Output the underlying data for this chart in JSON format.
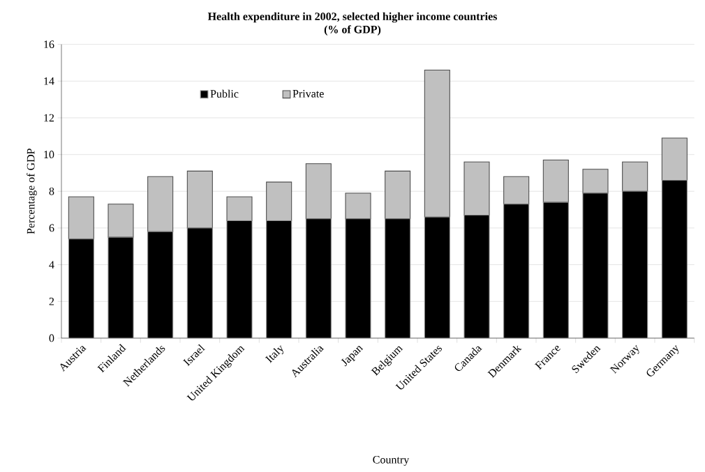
{
  "chart_data": {
    "type": "bar",
    "stacked": true,
    "title": "Health expenditure in 2002, selected higher income countries",
    "subtitle": "(% of GDP)",
    "xlabel": "Country",
    "ylabel": "Percentage of GDP",
    "categories": [
      "Austria",
      "Finland",
      "Netherlands",
      "Israel",
      "United Kingdom",
      "Italy",
      "Australia",
      "Japan",
      "Belgium",
      "United States",
      "Canada",
      "Denmark",
      "France",
      "Sweden",
      "Norway",
      "Germany"
    ],
    "series": [
      {
        "name": "Public",
        "color": "#000000",
        "values": [
          5.4,
          5.5,
          5.8,
          6.0,
          6.4,
          6.4,
          6.5,
          6.5,
          6.5,
          6.6,
          6.7,
          7.3,
          7.4,
          7.9,
          8.0,
          8.6
        ]
      },
      {
        "name": "Private",
        "color": "#c0c0c0",
        "values": [
          2.3,
          1.8,
          3.0,
          3.1,
          1.3,
          2.1,
          3.0,
          1.4,
          2.6,
          8.0,
          2.9,
          1.5,
          2.3,
          1.3,
          1.6,
          2.3
        ]
      }
    ],
    "ylim": [
      0,
      16
    ],
    "yticks": [
      0,
      2,
      4,
      6,
      8,
      10,
      12,
      14,
      16
    ],
    "grid": "y",
    "legend": "top left"
  }
}
